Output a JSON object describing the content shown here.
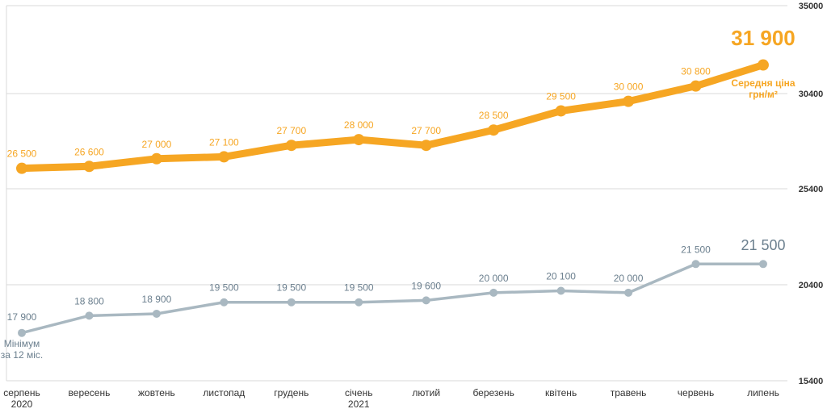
{
  "chart_data": {
    "type": "line",
    "categories": [
      [
        "серпень",
        "2020"
      ],
      [
        "вересень"
      ],
      [
        "жовтень"
      ],
      [
        "листопад"
      ],
      [
        "грудень"
      ],
      [
        "січень",
        "2021"
      ],
      [
        "лютий"
      ],
      [
        "березень"
      ],
      [
        "квітень"
      ],
      [
        "травень"
      ],
      [
        "червень"
      ],
      [
        "липень"
      ]
    ],
    "ylim": [
      15400,
      35000
    ],
    "yticks": [
      "35000",
      "30400",
      "25400",
      "20400",
      "15400"
    ],
    "grid": true,
    "series": [
      {
        "name": "Середня ціна грн/м²",
        "name_lines": [
          "Середня ціна",
          "грн/м²"
        ],
        "color": "#f6a623",
        "values": [
          26500,
          26600,
          27000,
          27100,
          27700,
          28000,
          27700,
          28500,
          29500,
          30000,
          30800,
          31900
        ],
        "value_labels": [
          "26 500",
          "26 600",
          "27 000",
          "27 100",
          "27 700",
          "28 000",
          "27 700",
          "28 500",
          "29 500",
          "30 000",
          "30 800",
          "31 900"
        ]
      },
      {
        "name": "Мінімум за 12 міс.",
        "name_lines": [
          "Мінімум",
          "за 12 міс."
        ],
        "color": "#a9b8c1",
        "label_color": "#6b7f8e",
        "values": [
          17900,
          18800,
          18900,
          19500,
          19500,
          19500,
          19600,
          20000,
          20100,
          20000,
          21500,
          21500
        ],
        "value_labels": [
          "17 900",
          "18 800",
          "18 900",
          "19 500",
          "19 500",
          "19 500",
          "19 600",
          "20 000",
          "20 100",
          "20 000",
          "21 500",
          "21 500"
        ]
      }
    ]
  }
}
